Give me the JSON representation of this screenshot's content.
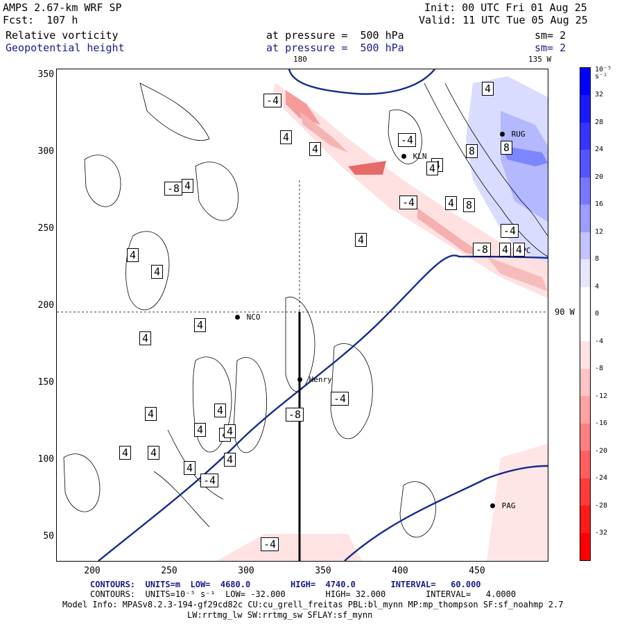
{
  "header": {
    "model": "AMPS 2.67-km WRF SP",
    "init": "Init: 00 UTC Fri 01 Aug 25",
    "fcst": "Fcst:  107 h",
    "valid": "Valid: 11 UTC Tue 05 Aug 25",
    "field1": "Relative vorticity",
    "field1_level": "at pressure =  500 hPa",
    "field1_sm": "sm= 2",
    "field2": "Geopotential height",
    "field2_level": "at pressure =  500 hPa",
    "field2_sm": "sm= 2"
  },
  "map": {
    "top_labels": {
      "lon_180": "180",
      "lon_135w": "135 W"
    },
    "right_label": "90 W",
    "y_ticks": [
      "350",
      "300",
      "250",
      "200",
      "150",
      "100",
      "50"
    ],
    "x_ticks": [
      "200",
      "250",
      "300",
      "350",
      "400",
      "450"
    ],
    "stations": [
      {
        "name": "NCO"
      },
      {
        "name": "Henry"
      },
      {
        "name": "KLN"
      },
      {
        "name": "RUG"
      },
      {
        "name": "PPC"
      },
      {
        "name": "PAG"
      }
    ],
    "contour_labels": [
      "-4",
      "4",
      "4",
      "-4",
      "4",
      "8",
      "4",
      "4",
      "8",
      "-8",
      "-4",
      "4",
      "8",
      "-4",
      "-8",
      "4",
      "4",
      "4",
      "4",
      "4",
      "4",
      "4",
      "4",
      "4",
      "4",
      "4",
      "4",
      "4",
      "4",
      "4",
      "4",
      "-4",
      "4",
      "-4",
      "-8",
      "-4"
    ]
  },
  "colorbar": {
    "unit": "10⁻⁵ s⁻¹",
    "labels": [
      "32",
      "28",
      "24",
      "20",
      "16",
      "12",
      "8",
      "4",
      "0",
      "-4",
      "-8",
      "-12",
      "-16",
      "-20",
      "-24",
      "-28",
      "-32"
    ],
    "colors_top_to_bottom": [
      "#0000ff",
      "#1a1aff",
      "#3535ff",
      "#5555ff",
      "#7878ff",
      "#9d9dff",
      "#c3c3ff",
      "#e6e6ff",
      "#ffffff",
      "#ffffff",
      "#ffe3e3",
      "#ffc4c4",
      "#ffa2a2",
      "#ff8080",
      "#ff5e5e",
      "#ff3a3a",
      "#ff1a1a",
      "#ff0000"
    ]
  },
  "footer": {
    "contours1": "CONTOURS:  UNITS=m  LOW=  4680.0        HIGH=  4740.0       INTERVAL=   60.000",
    "contours2": "CONTOURS:  UNITS=10⁻⁵ s⁻¹  LOW= -32.000        HIGH= 32.000        INTERVAL=   4.0000",
    "model_info": "Model Info: MPASv8.2.3-194-gf29cd82c CU:cu_grell_freitas PBL:bl_mynn MP:mp_thompson SF:sf_noahmp 2.7",
    "model_info2": "LW:rrtmg_lw SW:rrtmg_sw SFLAY:sf_mynn"
  }
}
